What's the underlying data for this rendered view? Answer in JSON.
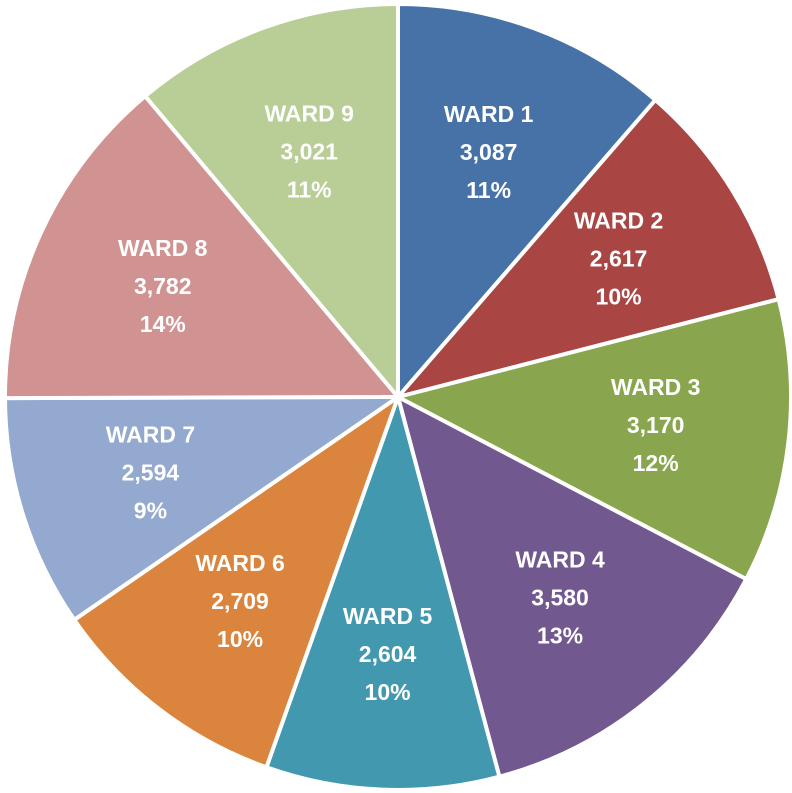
{
  "chart_data": {
    "type": "pie",
    "categories": [
      "WARD 1",
      "WARD 2",
      "WARD 3",
      "WARD 4",
      "WARD 5",
      "WARD 6",
      "WARD 7",
      "WARD 8",
      "WARD 9"
    ],
    "values": [
      3087,
      2617,
      3170,
      3580,
      2604,
      2709,
      2594,
      3782,
      3021
    ],
    "value_labels": [
      "3,087",
      "2,617",
      "3,170",
      "3,580",
      "2,604",
      "2,709",
      "2,594",
      "3,782",
      "3,021"
    ],
    "percent_labels": [
      "11%",
      "10%",
      "12%",
      "13%",
      "10%",
      "10%",
      "9%",
      "14%",
      "11%"
    ],
    "colors": [
      "#4672a8",
      "#a94543",
      "#89a54e",
      "#71588f",
      "#4198af",
      "#db843d",
      "#93a9cf",
      "#d09392",
      "#b9cd96"
    ]
  }
}
